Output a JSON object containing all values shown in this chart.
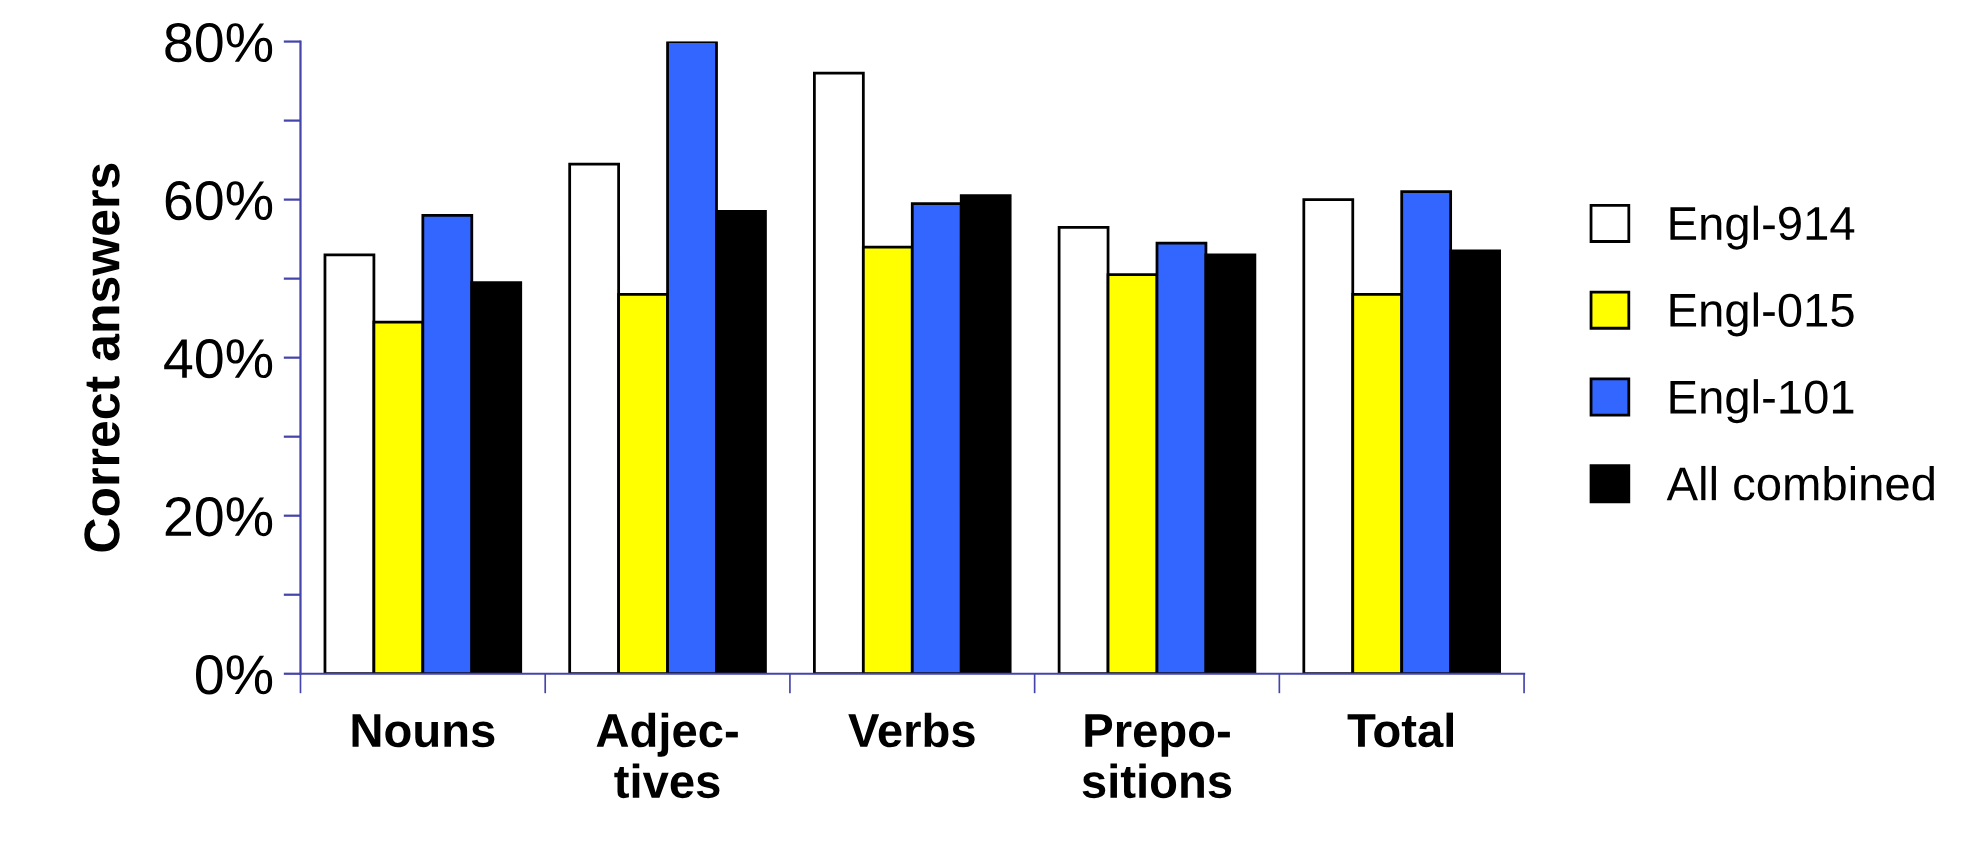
{
  "chart_data": {
    "type": "bar",
    "ylabel": "Correct answers",
    "categories": [
      "Nouns",
      "Adjec-\ntives",
      "Verbs",
      "Prepo-\nsitions",
      "Total"
    ],
    "series": [
      {
        "name": "Engl-914",
        "color": "#ffffff",
        "values": [
          53,
          64.5,
          76,
          56.5,
          60
        ]
      },
      {
        "name": "Engl-015",
        "color": "#ffff00",
        "values": [
          44.5,
          48,
          54,
          50.5,
          48
        ]
      },
      {
        "name": "Engl-101",
        "color": "#3366ff",
        "values": [
          58,
          80,
          59.5,
          54.5,
          61
        ]
      },
      {
        "name": "All combined",
        "color": "#000000",
        "values": [
          49.5,
          58.5,
          60.5,
          53,
          53.5
        ]
      }
    ],
    "ylim": [
      0,
      80
    ],
    "yticks": [
      {
        "value": 0,
        "label": "0%"
      },
      {
        "value": 10,
        "label": null
      },
      {
        "value": 20,
        "label": "20%"
      },
      {
        "value": 30,
        "label": null
      },
      {
        "value": 40,
        "label": "40%"
      },
      {
        "value": 50,
        "label": null
      },
      {
        "value": 60,
        "label": "60%"
      },
      {
        "value": 70,
        "label": null
      },
      {
        "value": 80,
        "label": "80%"
      }
    ],
    "grid": false,
    "legend": "right"
  }
}
